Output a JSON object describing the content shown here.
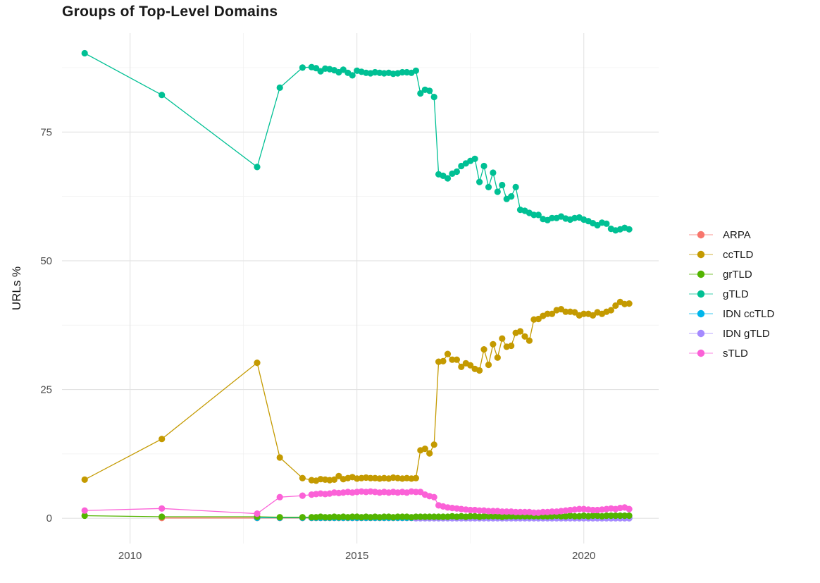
{
  "title": "Groups of Top-Level Domains",
  "y_axis_title": "URLs %",
  "colors": {
    "background": "#ffffff",
    "grid_major": "#e3e3e3",
    "grid_minor": "#f0f0f0",
    "tick_label": "#4d4d4d",
    "title_text": "#1a1a1a"
  },
  "chart_data": {
    "type": "line",
    "title": "Groups of Top-Level Domains",
    "xlabel": "",
    "ylabel": "URLs %",
    "x_ticks": [
      2010,
      2015,
      2020
    ],
    "x_minor_ticks": [
      2012.5,
      2017.5
    ],
    "y_ticks": [
      0,
      25,
      50,
      75
    ],
    "y_minor_ticks": [
      12.5,
      37.5,
      62.5,
      87.5
    ],
    "xlim": [
      2008.5,
      2021.65
    ],
    "ylim": [
      -4.9,
      94.2
    ],
    "grid": "on",
    "markers": true,
    "legend_position": "right",
    "x": [
      2009.0,
      2010.7,
      2012.8,
      2013.3,
      2013.8,
      2014.0,
      2014.1,
      2014.2,
      2014.3,
      2014.4,
      2014.5,
      2014.6,
      2014.7,
      2014.8,
      2014.9,
      2015.0,
      2015.1,
      2015.2,
      2015.3,
      2015.4,
      2015.5,
      2015.6,
      2015.7,
      2015.8,
      2015.9,
      2016.0,
      2016.1,
      2016.2,
      2016.3,
      2016.4,
      2016.5,
      2016.6,
      2016.7,
      2016.8,
      2016.9,
      2017.0,
      2017.1,
      2017.2,
      2017.3,
      2017.4,
      2017.5,
      2017.6,
      2017.7,
      2017.8,
      2017.9,
      2018.0,
      2018.1,
      2018.2,
      2018.3,
      2018.4,
      2018.5,
      2018.6,
      2018.7,
      2018.8,
      2018.9,
      2019.0,
      2019.1,
      2019.2,
      2019.3,
      2019.4,
      2019.5,
      2019.6,
      2019.7,
      2019.8,
      2019.9,
      2020.0,
      2020.1,
      2020.2,
      2020.3,
      2020.4,
      2020.5,
      2020.6,
      2020.7,
      2020.8,
      2020.9,
      2021.0
    ],
    "series": [
      {
        "name": "ARPA",
        "color": "#F8766D",
        "values": [
          null,
          0.05,
          0.05,
          0.05,
          0.05,
          0.05,
          0.05,
          0.05,
          0.05,
          0.05,
          0.05,
          0.05,
          0.05,
          0.05,
          0.05,
          0.05,
          0.05,
          0.05,
          0.05,
          0.05,
          0.05,
          0.05,
          0.05,
          0.05,
          0.05,
          0.05,
          0.05,
          0.05,
          0.05,
          0.05,
          0.05,
          0.05,
          0.05,
          0.05,
          0.05,
          0.05,
          0.05,
          0.05,
          0.05,
          0.05,
          0.05,
          0.05,
          0.05,
          0.05,
          0.05,
          0.05,
          0.05,
          0.05,
          0.05,
          0.05,
          0.05,
          0.05,
          0.05,
          0.05,
          0.05,
          0.05,
          0.05,
          0.05,
          0.05,
          0.05,
          0.05,
          0.05,
          0.05,
          0.05,
          0.05,
          0.05,
          0.05,
          0.05,
          0.05,
          0.05,
          0.05,
          0.05,
          0.05,
          0.05,
          0.05,
          0.05
        ]
      },
      {
        "name": "ccTLD",
        "color": "#C49A00",
        "values": [
          7.5,
          15.4,
          30.2,
          11.8,
          7.8,
          7.4,
          7.3,
          7.6,
          7.5,
          7.4,
          7.5,
          8.2,
          7.6,
          7.8,
          8.0,
          7.7,
          7.8,
          7.9,
          7.8,
          7.8,
          7.7,
          7.8,
          7.7,
          7.9,
          7.8,
          7.7,
          7.8,
          7.7,
          7.8,
          13.2,
          13.5,
          12.6,
          14.3,
          30.4,
          30.5,
          31.9,
          30.8,
          30.8,
          29.4,
          30.1,
          29.7,
          29.0,
          28.7,
          32.8,
          29.8,
          33.8,
          31.2,
          34.9,
          33.3,
          33.5,
          36.0,
          36.3,
          35.3,
          34.5,
          38.6,
          38.7,
          39.3,
          39.7,
          39.7,
          40.4,
          40.6,
          40.1,
          40.1,
          40.0,
          39.4,
          39.7,
          39.7,
          39.4,
          40.0,
          39.7,
          40.1,
          40.4,
          41.3,
          42.0,
          41.6,
          41.7
        ]
      },
      {
        "name": "grTLD",
        "color": "#53B400",
        "values": [
          0.5,
          0.3,
          0.3,
          0.2,
          0.2,
          0.2,
          0.2,
          0.3,
          0.2,
          0.2,
          0.3,
          0.2,
          0.3,
          0.2,
          0.3,
          0.3,
          0.2,
          0.3,
          0.2,
          0.3,
          0.2,
          0.3,
          0.3,
          0.2,
          0.3,
          0.3,
          0.3,
          0.2,
          0.3,
          0.3,
          0.3,
          0.3,
          0.3,
          0.3,
          0.3,
          0.3,
          0.4,
          0.3,
          0.4,
          0.3,
          0.4,
          0.4,
          0.3,
          0.4,
          0.4,
          0.4,
          0.4,
          0.3,
          0.4,
          0.4,
          0.4,
          0.4,
          0.4,
          0.4,
          0.4,
          0.4,
          0.4,
          0.4,
          0.4,
          0.5,
          0.4,
          0.4,
          0.5,
          0.4,
          0.4,
          0.5,
          0.4,
          0.5,
          0.5,
          0.4,
          0.5,
          0.5,
          0.5,
          0.5,
          0.5,
          0.5
        ]
      },
      {
        "name": "gTLD",
        "color": "#00C094",
        "values": [
          90.3,
          82.2,
          68.2,
          83.6,
          87.5,
          87.6,
          87.4,
          86.8,
          87.3,
          87.2,
          87.0,
          86.6,
          87.1,
          86.5,
          86.0,
          86.9,
          86.7,
          86.5,
          86.4,
          86.6,
          86.5,
          86.4,
          86.5,
          86.3,
          86.4,
          86.6,
          86.6,
          86.5,
          86.9,
          82.5,
          83.2,
          83.0,
          81.8,
          66.8,
          66.5,
          66.0,
          66.9,
          67.3,
          68.4,
          68.9,
          69.4,
          69.8,
          65.3,
          68.4,
          64.3,
          67.1,
          63.4,
          64.7,
          62.0,
          62.5,
          64.3,
          59.9,
          59.7,
          59.3,
          58.9,
          58.9,
          58.1,
          57.9,
          58.3,
          58.3,
          58.6,
          58.2,
          58.0,
          58.3,
          58.4,
          58.0,
          57.7,
          57.3,
          56.9,
          57.4,
          57.2,
          56.2,
          55.9,
          56.1,
          56.4,
          56.1
        ]
      },
      {
        "name": "IDN ccTLD",
        "color": "#00B6EB",
        "values": [
          null,
          null,
          0.1,
          0.1,
          0.1,
          0.1,
          0.1,
          0.1,
          0.1,
          0.1,
          0.1,
          0.1,
          0.1,
          0.1,
          0.1,
          0.1,
          0.1,
          0.1,
          0.1,
          0.1,
          0.1,
          0.1,
          0.1,
          0.1,
          0.1,
          0.1,
          0.1,
          0.1,
          0.1,
          0.1,
          0.1,
          0.1,
          0.1,
          0.1,
          0.1,
          0.1,
          0.1,
          0.1,
          0.1,
          0.1,
          0.1,
          0.1,
          0.1,
          0.1,
          0.1,
          0.1,
          0.1,
          0.1,
          0.1,
          0.1,
          0.1,
          0.1,
          0.1,
          0.1,
          0.1,
          0.1,
          0.1,
          0.1,
          0.1,
          0.1,
          0.1,
          0.1,
          0.1,
          0.1,
          0.1,
          0.1,
          0.1,
          0.1,
          0.1,
          0.1,
          0.1,
          0.1,
          0.1,
          0.1,
          0.1,
          0.1
        ]
      },
      {
        "name": "IDN gTLD",
        "color": "#A58AFF",
        "values": [
          null,
          null,
          null,
          null,
          null,
          null,
          null,
          null,
          null,
          null,
          null,
          null,
          null,
          null,
          null,
          null,
          null,
          null,
          null,
          null,
          null,
          null,
          null,
          null,
          null,
          null,
          null,
          null,
          0.0,
          0.0,
          0.0,
          0.0,
          0.0,
          0.0,
          0.0,
          0.0,
          0.0,
          0.0,
          0.0,
          0.0,
          0.0,
          0.0,
          0.0,
          0.0,
          0.0,
          0.0,
          0.0,
          0.0,
          0.0,
          0.0,
          0.0,
          0.0,
          0.0,
          0.0,
          0.0,
          0.0,
          0.0,
          0.0,
          0.0,
          0.0,
          0.0,
          0.0,
          0.0,
          0.0,
          0.0,
          0.0,
          0.0,
          0.0,
          0.0,
          0.0,
          0.0,
          0.0,
          0.0,
          0.0,
          0.0,
          0.0
        ]
      },
      {
        "name": "sTLD",
        "color": "#FB61D7",
        "values": [
          1.5,
          1.9,
          0.9,
          4.1,
          4.4,
          4.6,
          4.7,
          4.8,
          4.7,
          4.8,
          5.0,
          4.9,
          5.0,
          5.1,
          5.0,
          5.1,
          5.2,
          5.1,
          5.2,
          5.1,
          5.0,
          5.1,
          5.0,
          5.1,
          5.0,
          5.1,
          5.0,
          5.2,
          5.1,
          5.1,
          4.6,
          4.3,
          4.1,
          2.5,
          2.3,
          2.1,
          2.0,
          1.9,
          1.8,
          1.7,
          1.6,
          1.6,
          1.5,
          1.5,
          1.4,
          1.4,
          1.4,
          1.3,
          1.3,
          1.3,
          1.2,
          1.2,
          1.2,
          1.2,
          1.1,
          1.1,
          1.2,
          1.2,
          1.3,
          1.3,
          1.4,
          1.5,
          1.6,
          1.7,
          1.8,
          1.8,
          1.7,
          1.6,
          1.6,
          1.7,
          1.8,
          1.9,
          1.8,
          2.0,
          2.1,
          1.8
        ]
      }
    ]
  }
}
